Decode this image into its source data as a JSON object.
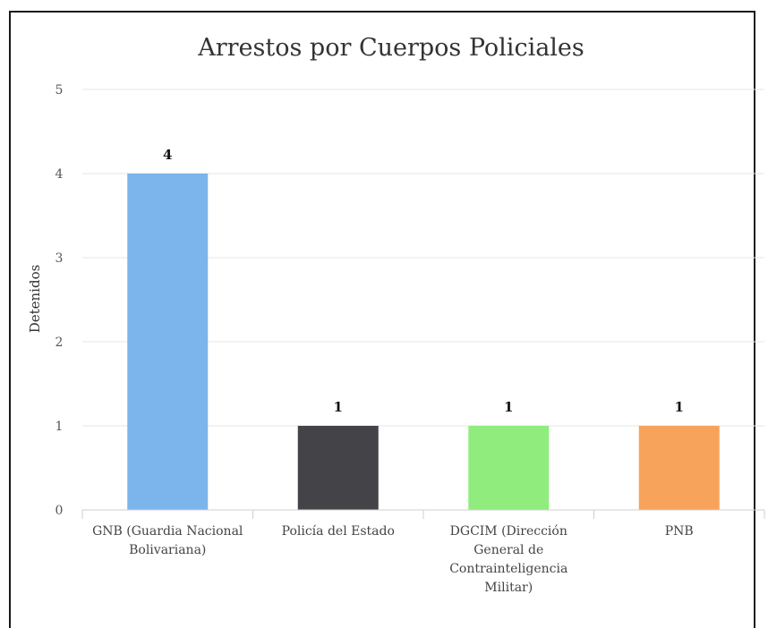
{
  "chart_data": {
    "type": "bar",
    "title": "Arrestos por Cuerpos Policiales",
    "ylabel": "Detenidos",
    "xlabel": "",
    "ylim": [
      0,
      5
    ],
    "yticks": [
      0,
      1,
      2,
      3,
      4,
      5
    ],
    "grid": true,
    "legend": false,
    "categories": [
      [
        "GNB (Guardia Nacional",
        "Bolivariana)"
      ],
      [
        "Policía del Estado"
      ],
      [
        "DGCIM (Dirección",
        "General de",
        "Contrainteligencia",
        "Militar)"
      ],
      [
        "PNB"
      ]
    ],
    "values": [
      4,
      1,
      1,
      1
    ],
    "colors": [
      "#7cb5ec",
      "#434348",
      "#90ed7d",
      "#f7a35c"
    ]
  }
}
